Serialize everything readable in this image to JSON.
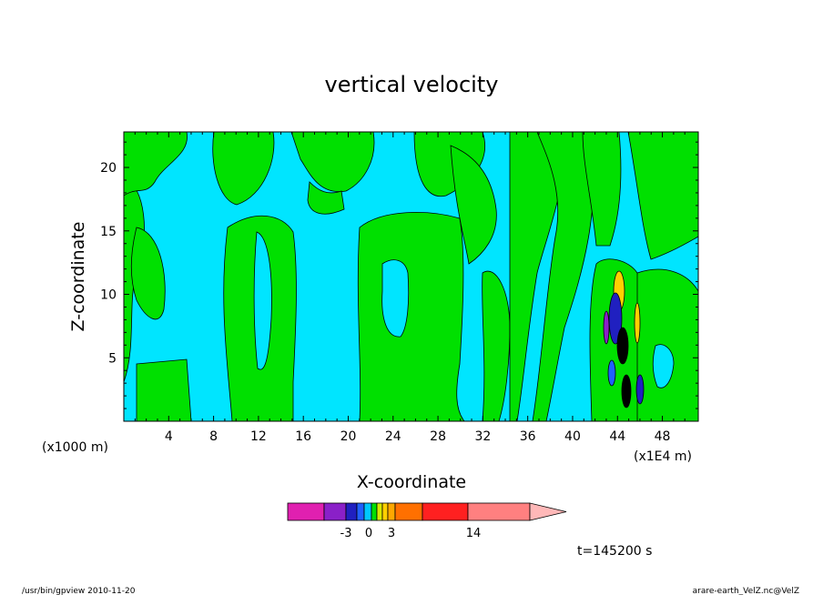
{
  "chart_data": {
    "type": "heatmap",
    "title": "vertical velocity",
    "xlabel": "X-coordinate",
    "ylabel": "Z-coordinate",
    "x_unit_left": "(x1000 m)",
    "x_unit_right": "(x1E4 m)",
    "xlim": [
      0,
      51.2
    ],
    "ylim": [
      0,
      22.8
    ],
    "xticks": [
      4,
      8,
      12,
      16,
      20,
      24,
      28,
      32,
      36,
      40,
      44,
      48
    ],
    "yticks": [
      5,
      10,
      15,
      20
    ],
    "colorbar_labels": [
      {
        "value": -3,
        "text": "-3"
      },
      {
        "value": 0,
        "text": "0"
      },
      {
        "value": 3,
        "text": "3"
      },
      {
        "value": 14,
        "text": "14"
      }
    ],
    "colorbar_colors": [
      "#e020b0",
      "#8a20c8",
      "#2020c0",
      "#2060ff",
      "#00c8ff",
      "#00e000",
      "#d8e800",
      "#ffd000",
      "#ffa800",
      "#ff7000",
      "#ff2020",
      "#ff8080",
      "#ffb8b8"
    ],
    "background_color": "#00e5ff",
    "positive_color": "#00e000",
    "time_label": "t=145200 s",
    "extends_max": true
  },
  "footer": {
    "left": "/usr/bin/gpview   2010-11-20",
    "right": "arare-earth_VelZ.nc@VelZ"
  }
}
